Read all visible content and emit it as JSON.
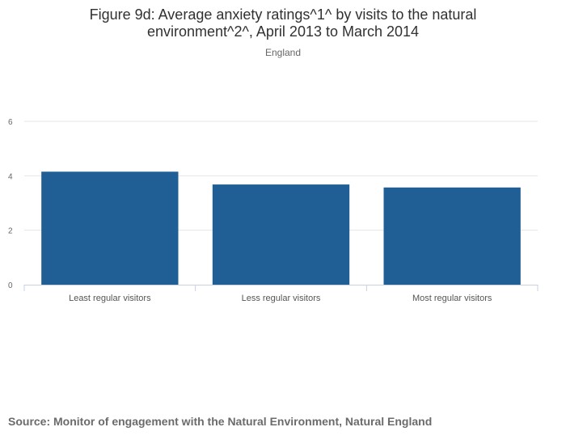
{
  "chart_data": {
    "type": "bar",
    "title_lines": [
      "Figure 9d: Average anxiety ratings^1^ by visits to the natural",
      "environment^2^, April 2013 to March 2014"
    ],
    "subtitle": "England",
    "categories": [
      "Least regular visitors",
      "Less regular visitors",
      "Most regular visitors"
    ],
    "values": [
      4.15,
      3.68,
      3.57
    ],
    "yticks": [
      0,
      2,
      4,
      6
    ],
    "ylim": [
      0,
      6
    ],
    "xlabel": "",
    "ylabel": "",
    "grid": true,
    "bar_color": "#1f5f96",
    "gridline_color": "#e5e5e5",
    "axis_color": "#c8d1e0"
  },
  "source": "Source: Monitor of engagement with the Natural Environment, Natural England"
}
